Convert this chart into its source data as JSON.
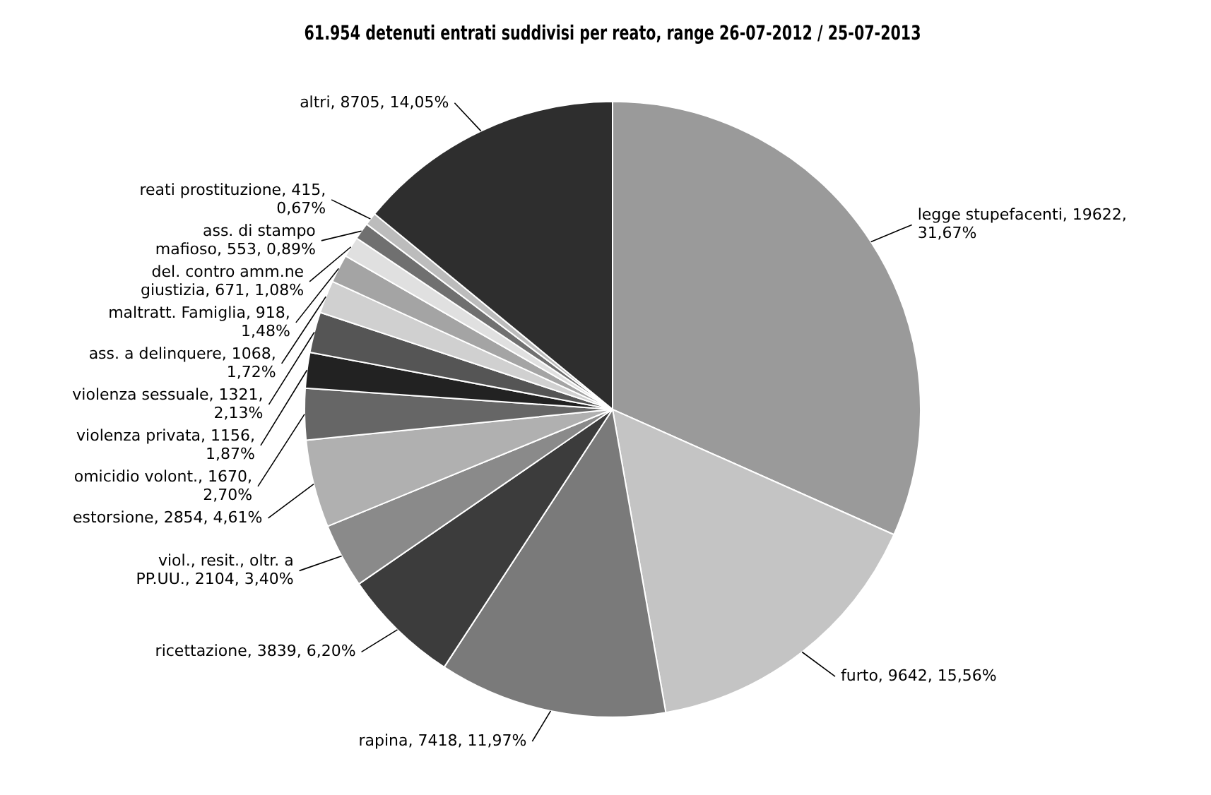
{
  "chart_data": {
    "type": "pie",
    "title": "61.954 detenuti entrati suddivisi per reato, range 26-07-2012 / 25-07-2013",
    "categories": [
      "legge stupefacenti",
      "furto",
      "rapina",
      "ricettazione",
      "viol., resit., oltr. a PP.UU.",
      "estorsione",
      "omicidio volont.",
      "violenza privata",
      "violenza sessuale",
      "ass. a delinquere",
      "maltratt. Famiglia",
      "del. contro amm.ne giustizia",
      "ass. di stampo mafioso",
      "reati prostituzione",
      "altri"
    ],
    "values": [
      19622,
      9642,
      7418,
      3839,
      2104,
      2854,
      1670,
      1156,
      1321,
      1068,
      918,
      671,
      553,
      415,
      8705
    ],
    "value_labels": [
      "19622, 31,67%",
      "9642, 15,56%",
      "7418, 11,97%",
      "3839, 6,20%",
      "2104, 3,40%",
      "2854, 4,61%",
      "1670, 2,70%",
      "1156, 1,87%",
      "1321, 2,13%",
      "1068, 1,72%",
      "918, 1,48%",
      "671, 1,08%",
      "553, 0,89%",
      "415, 0,67%",
      "8705, 14,05%"
    ],
    "colors": [
      "#9a9a9a",
      "#c4c4c4",
      "#7a7a7a",
      "#3c3c3c",
      "#8a8a8a",
      "#b0b0b0",
      "#666666",
      "#222222",
      "#555555",
      "#d0d0d0",
      "#a4a4a4",
      "#e0e0e0",
      "#707070",
      "#bcbcbc",
      "#2e2e2e"
    ],
    "legend": false
  }
}
